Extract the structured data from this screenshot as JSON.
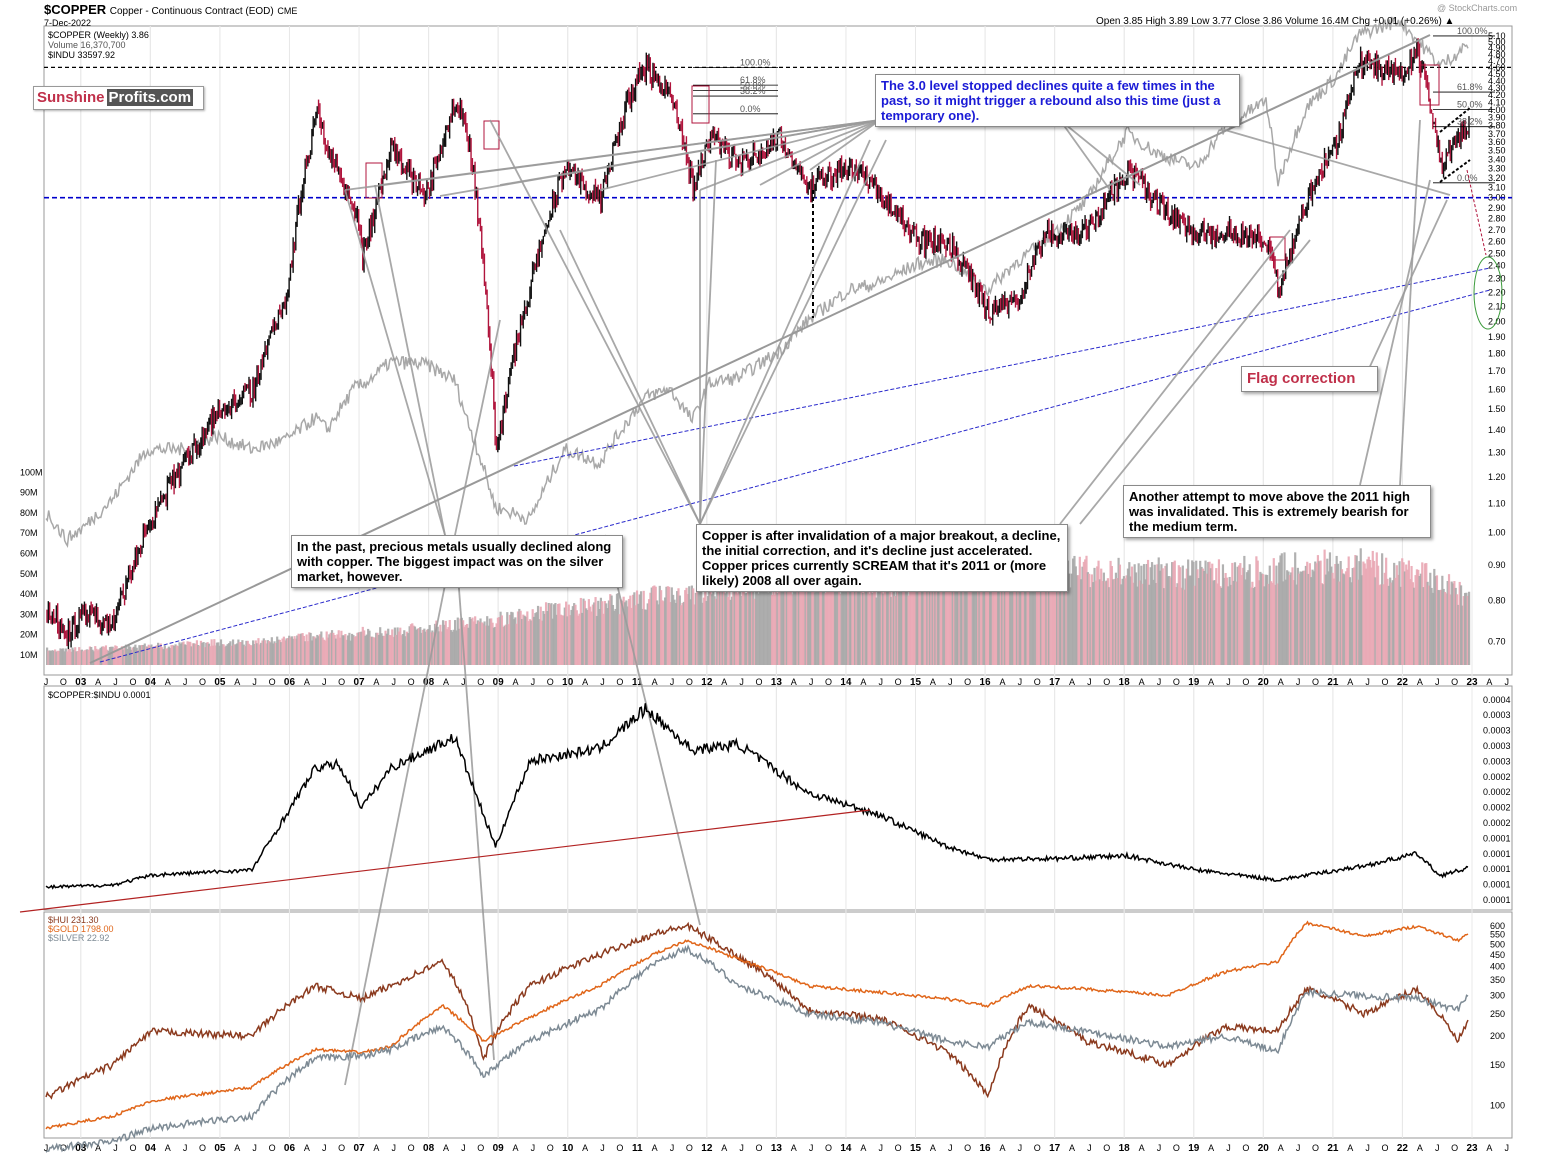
{
  "header": {
    "symbol": "$COPPER",
    "description": "Copper - Continuous Contract (EOD)",
    "exchange": "CME",
    "date": "7-Dec-2022",
    "ohlc": "Open 3.85  High 3.89  Low 3.77  Close 3.86  Volume 16.4M  Chg +0.01 (+0.26%) ▲",
    "watermark": "@ StockCharts.com"
  },
  "legend_top": [
    "$COPPER (Weekly) 3.86",
    "Volume 16,370,700",
    "$INDU 33597.92"
  ],
  "legend_mid": "$COPPER:$INDU 0.0001",
  "legend_bottom": [
    "$HUI 231.30",
    "$GOLD 1798.00",
    "$SILVER 22.92"
  ],
  "logo": {
    "part1": "Sunshine",
    "part2": "Profits.com"
  },
  "annotations": {
    "level_note": "The 3.0 level stopped declines quite a few times in the past, so it might trigger a rebound also this time (just a temporary one).",
    "flag": "Flag correction",
    "metals_note": "In the past, precious metals usually declined along with copper. The biggest impact was on the silver market, however.",
    "copper_note": "Copper is after invalidation of a major breakout, a decline, the initial correction, and it's decline just accelerated. Copper prices currently SCREAM that it's 2011 or (more likely) 2008 all over again.",
    "high_note": "Another attempt to move above the 2011 high was invalidated. This is extremely bearish for the medium term."
  },
  "fib_left": [
    "100.0%",
    "61.8%",
    "50.0%",
    "38.2%",
    "0.0%"
  ],
  "fib_right": [
    "100.0%",
    "61.8%",
    "50.0%",
    "38.2%",
    "0.0%"
  ],
  "colors": {
    "copper_up": "#111111",
    "copper_down": "#b0143c",
    "indu": "#a8a8a8",
    "ratio": "#000000",
    "ratio_trend": "#b22222",
    "hui": "#8b3a1e",
    "gold": "#e0661a",
    "silver": "#7d8a94",
    "level_line": "#0000cc",
    "trend_lines": "#2a2acc",
    "connector": "#9a9a9a",
    "flag_text": "#c0304a"
  },
  "chart_data": [
    {
      "type": "line",
      "title": "$COPPER Copper - Continuous Contract (EOD) CME",
      "scale": "log",
      "x": [
        "2002-07",
        "2002-10",
        "2003-01",
        "2003-06",
        "2003-12",
        "2004-06",
        "2004-12",
        "2005-06",
        "2005-12",
        "2006-05",
        "2006-07",
        "2006-12",
        "2007-01",
        "2007-06",
        "2007-12",
        "2008-05",
        "2008-07",
        "2008-12",
        "2009-06",
        "2009-12",
        "2010-06",
        "2010-12",
        "2011-02",
        "2011-06",
        "2011-10",
        "2012-01",
        "2012-06",
        "2013-01",
        "2013-06",
        "2014-01",
        "2014-06",
        "2015-01",
        "2015-06",
        "2016-01",
        "2016-06",
        "2016-11",
        "2017-06",
        "2018-01",
        "2018-06",
        "2019-01",
        "2019-06",
        "2020-01",
        "2020-03",
        "2020-08",
        "2021-01",
        "2021-05",
        "2021-12",
        "2022-03",
        "2022-07",
        "2022-12"
      ],
      "series": [
        {
          "name": "$COPPER (Weekly) 3.86",
          "values": [
            0.77,
            0.72,
            0.76,
            0.74,
            1.02,
            1.25,
            1.48,
            1.6,
            2.2,
            4.0,
            3.5,
            2.85,
            2.45,
            3.5,
            3.0,
            4.15,
            3.75,
            1.3,
            2.25,
            3.32,
            2.95,
            4.4,
            4.6,
            4.2,
            3.1,
            3.7,
            3.35,
            3.65,
            3.1,
            3.35,
            3.05,
            2.6,
            2.6,
            2.05,
            2.15,
            2.65,
            2.7,
            3.3,
            2.95,
            2.65,
            2.7,
            2.6,
            2.2,
            3.0,
            3.6,
            4.7,
            4.5,
            4.85,
            3.35,
            3.86
          ]
        },
        {
          "name": "$INDU 33597.92",
          "values": [
            8600,
            8000,
            8300,
            9000,
            10400,
            10400,
            10800,
            10400,
            10700,
            11400,
            11000,
            12500,
            12500,
            13400,
            13300,
            12700,
            11400,
            8800,
            8500,
            10400,
            10000,
            11600,
            12100,
            12400,
            11300,
            12600,
            12800,
            13800,
            15100,
            16500,
            16800,
            17800,
            18000,
            16500,
            17900,
            19000,
            21300,
            26000,
            24500,
            23500,
            26500,
            28500,
            22500,
            28000,
            30500,
            34500,
            36000,
            34000,
            31500,
            33600
          ]
        },
        {
          "name": "Volume 16,370,700",
          "values": [
            8,
            8,
            9,
            9,
            10,
            11,
            12,
            12,
            14,
            16,
            16,
            16,
            18,
            18,
            20,
            22,
            22,
            24,
            28,
            30,
            32,
            34,
            36,
            38,
            38,
            40,
            42,
            45,
            48,
            46,
            44,
            46,
            48,
            48,
            50,
            52,
            50,
            52,
            50,
            48,
            50,
            50,
            52,
            52,
            54,
            54,
            50,
            48,
            46,
            35
          ]
        }
      ],
      "ylim": [
        0.65,
        5.2
      ],
      "level": 3.0
    },
    {
      "type": "line",
      "title": "$COPPER:$INDU 0.0001",
      "x": [
        "2002-07",
        "2003-06",
        "2004-01",
        "2005-06",
        "2006-05",
        "2006-09",
        "2007-01",
        "2007-06",
        "2008-05",
        "2008-12",
        "2009-06",
        "2010-06",
        "2011-02",
        "2011-10",
        "2012-06",
        "2013-06",
        "2014-06",
        "2015-06",
        "2016-01",
        "2017-01",
        "2018-01",
        "2019-01",
        "2020-03",
        "2021-06",
        "2022-03",
        "2022-07",
        "2022-12"
      ],
      "series": [
        {
          "name": "$COPPER:$INDU",
          "values": [
            8.8e-05,
            9.1e-05,
            0.000105,
            0.000112,
            0.000255,
            0.00026,
            0.0002,
            0.000255,
            0.000298,
            0.000145,
            0.000265,
            0.000282,
            0.000338,
            0.00028,
            0.000288,
            0.00022,
            0.00019,
            0.000145,
            0.000127,
            0.000128,
            0.000132,
            0.000112,
            9.8e-05,
            0.000118,
            0.000135,
            0.000104,
            0.000115
          ]
        }
      ],
      "ylim": [
        7e-05,
        0.00035
      ]
    },
    {
      "type": "line",
      "x": [
        "2002-07",
        "2003-06",
        "2004-01",
        "2005-06",
        "2006-05",
        "2007-01",
        "2007-06",
        "2008-03",
        "2008-10",
        "2009-06",
        "2010-06",
        "2011-04",
        "2011-09",
        "2012-06",
        "2013-06",
        "2014-06",
        "2015-06",
        "2016-01",
        "2016-08",
        "2017-06",
        "2018-08",
        "2019-06",
        "2020-03",
        "2020-08",
        "2021-06",
        "2022-03",
        "2022-10",
        "2022-12"
      ],
      "series": [
        {
          "name": "$HUI 231.30",
          "values": [
            110,
            150,
            210,
            200,
            330,
            290,
            330,
            420,
            160,
            330,
            450,
            560,
            600,
            440,
            260,
            240,
            170,
            110,
            270,
            190,
            150,
            220,
            210,
            320,
            250,
            320,
            190,
            231
          ]
        },
        {
          "name": "$GOLD 1798.00",
          "values": [
            80,
            90,
            105,
            120,
            175,
            170,
            180,
            270,
            190,
            240,
            330,
            460,
            520,
            430,
            330,
            310,
            290,
            270,
            330,
            320,
            300,
            380,
            420,
            620,
            540,
            600,
            520,
            555
          ]
        },
        {
          "name": "$SILVER 22.92",
          "values": [
            65,
            70,
            80,
            90,
            160,
            165,
            175,
            220,
            135,
            190,
            260,
            420,
            480,
            330,
            250,
            230,
            190,
            180,
            230,
            210,
            180,
            200,
            170,
            310,
            300,
            290,
            260,
            310
          ]
        }
      ],
      "ylim": [
        80,
        650
      ]
    }
  ]
}
